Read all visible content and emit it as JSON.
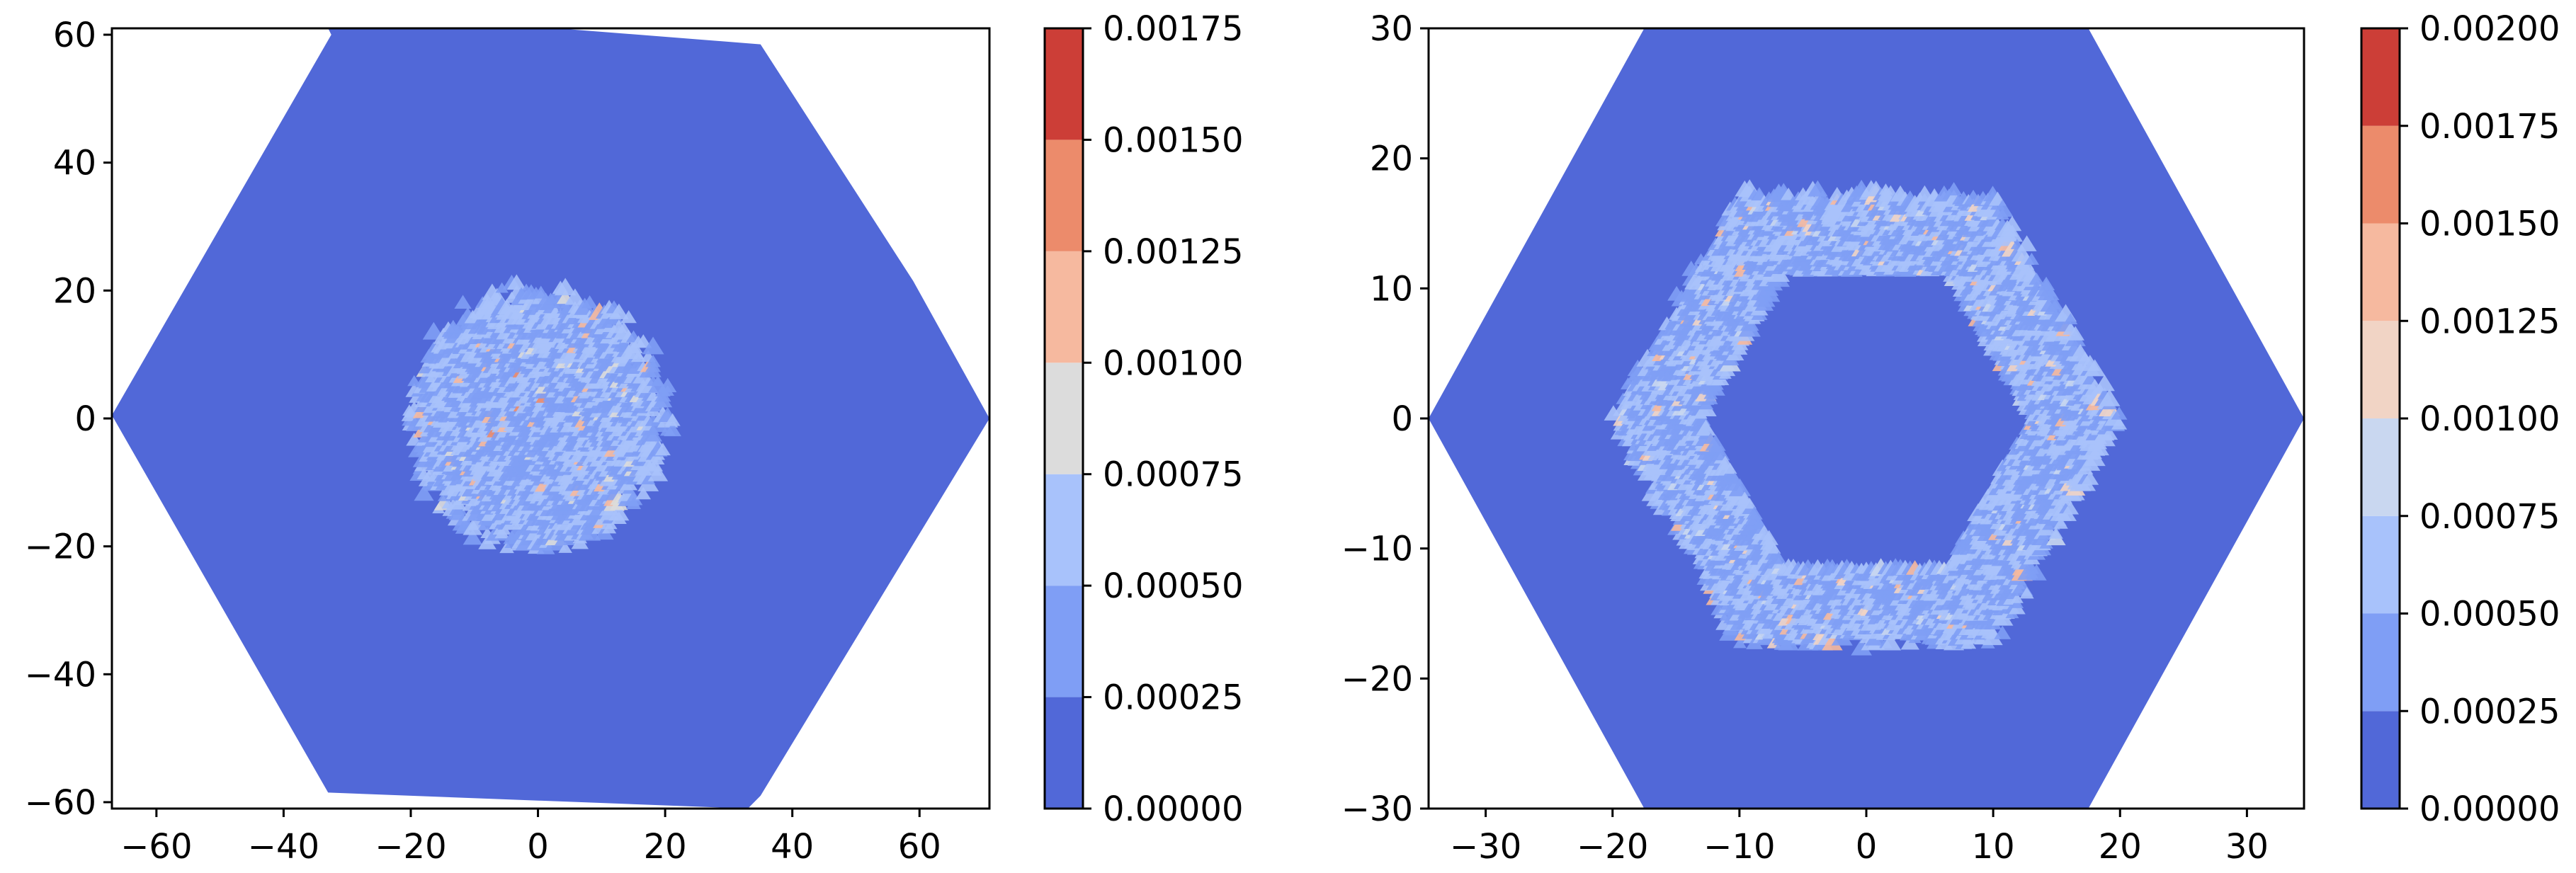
{
  "chart_data": [
    {
      "type": "heatmap",
      "title": "",
      "xlabel": "",
      "ylabel": "",
      "xlim": [
        -67,
        71
      ],
      "ylim": [
        -61,
        61
      ],
      "x_ticks": [
        "−60",
        "−40",
        "−20",
        "0",
        "20",
        "40",
        "60"
      ],
      "y_ticks": [
        "−60",
        "−40",
        "−20",
        "0",
        "20",
        "40",
        "60"
      ],
      "x_tick_values": [
        -60,
        -40,
        -20,
        0,
        20,
        40,
        60
      ],
      "y_tick_values": [
        -60,
        -40,
        -20,
        0,
        20,
        40,
        60
      ],
      "domain_shape": "hexagon",
      "domain_vertices": [
        [
          -67,
          0.5
        ],
        [
          -32.5,
          60
        ],
        [
          -33,
          61
        ],
        [
          3,
          61
        ],
        [
          35,
          58.5
        ],
        [
          59,
          21.5
        ],
        [
          71,
          0
        ],
        [
          35,
          -59
        ],
        [
          33,
          -61
        ],
        [
          -33,
          -58.5
        ]
      ],
      "hotspot": {
        "shape": "disc",
        "center": [
          0,
          0
        ],
        "radius": 19,
        "level": 0.0005,
        "peak_level": 0.0013
      },
      "colorbar": {
        "levels": [
          0.0,
          0.00025,
          0.0005,
          0.00075,
          0.001,
          0.00125,
          0.0015,
          0.00175
        ],
        "labels": [
          "0.00000",
          "0.00025",
          "0.00050",
          "0.00075",
          "0.00100",
          "0.00125",
          "0.00150",
          "0.00175"
        ],
        "colors": [
          "#5168d8",
          "#7f9ef5",
          "#a8c2fb",
          "#dcdcdc",
          "#f6b99f",
          "#ec8b6b",
          "#cc3e37"
        ]
      },
      "background_color": "#5168d8"
    },
    {
      "type": "heatmap",
      "title": "",
      "xlabel": "",
      "ylabel": "",
      "xlim": [
        -34.5,
        34.5
      ],
      "ylim": [
        -30,
        30
      ],
      "x_ticks": [
        "−30",
        "−20",
        "−10",
        "0",
        "10",
        "20",
        "30"
      ],
      "y_ticks": [
        "−30",
        "−20",
        "−10",
        "0",
        "10",
        "20",
        "30"
      ],
      "x_tick_values": [
        -30,
        -20,
        -10,
        0,
        10,
        20,
        30
      ],
      "y_tick_values": [
        -30,
        -20,
        -10,
        0,
        10,
        20,
        30
      ],
      "domain_shape": "hexagon",
      "domain_vertices": [
        [
          -34.5,
          0
        ],
        [
          -17.5,
          30
        ],
        [
          17.5,
          30
        ],
        [
          34.5,
          0
        ],
        [
          17.5,
          -30
        ],
        [
          -17.5,
          -30
        ]
      ],
      "hotspot": {
        "shape": "hexagonal-ring",
        "inner_radius": 13,
        "outer_radius": 19,
        "level": 0.0005,
        "peak_level": 0.0015
      },
      "colorbar": {
        "levels": [
          0.0,
          0.00025,
          0.0005,
          0.00075,
          0.001,
          0.00125,
          0.0015,
          0.00175,
          0.002
        ],
        "labels": [
          "0.00000",
          "0.00025",
          "0.00050",
          "0.00075",
          "0.00100",
          "0.00125",
          "0.00150",
          "0.00175",
          "0.00200"
        ],
        "colors": [
          "#5168d8",
          "#7f9ef5",
          "#a8c2fb",
          "#c9d7f0",
          "#f1d4c5",
          "#f6b99f",
          "#ec8b6b",
          "#cc3e37"
        ]
      },
      "background_color": "#5168d8"
    }
  ]
}
